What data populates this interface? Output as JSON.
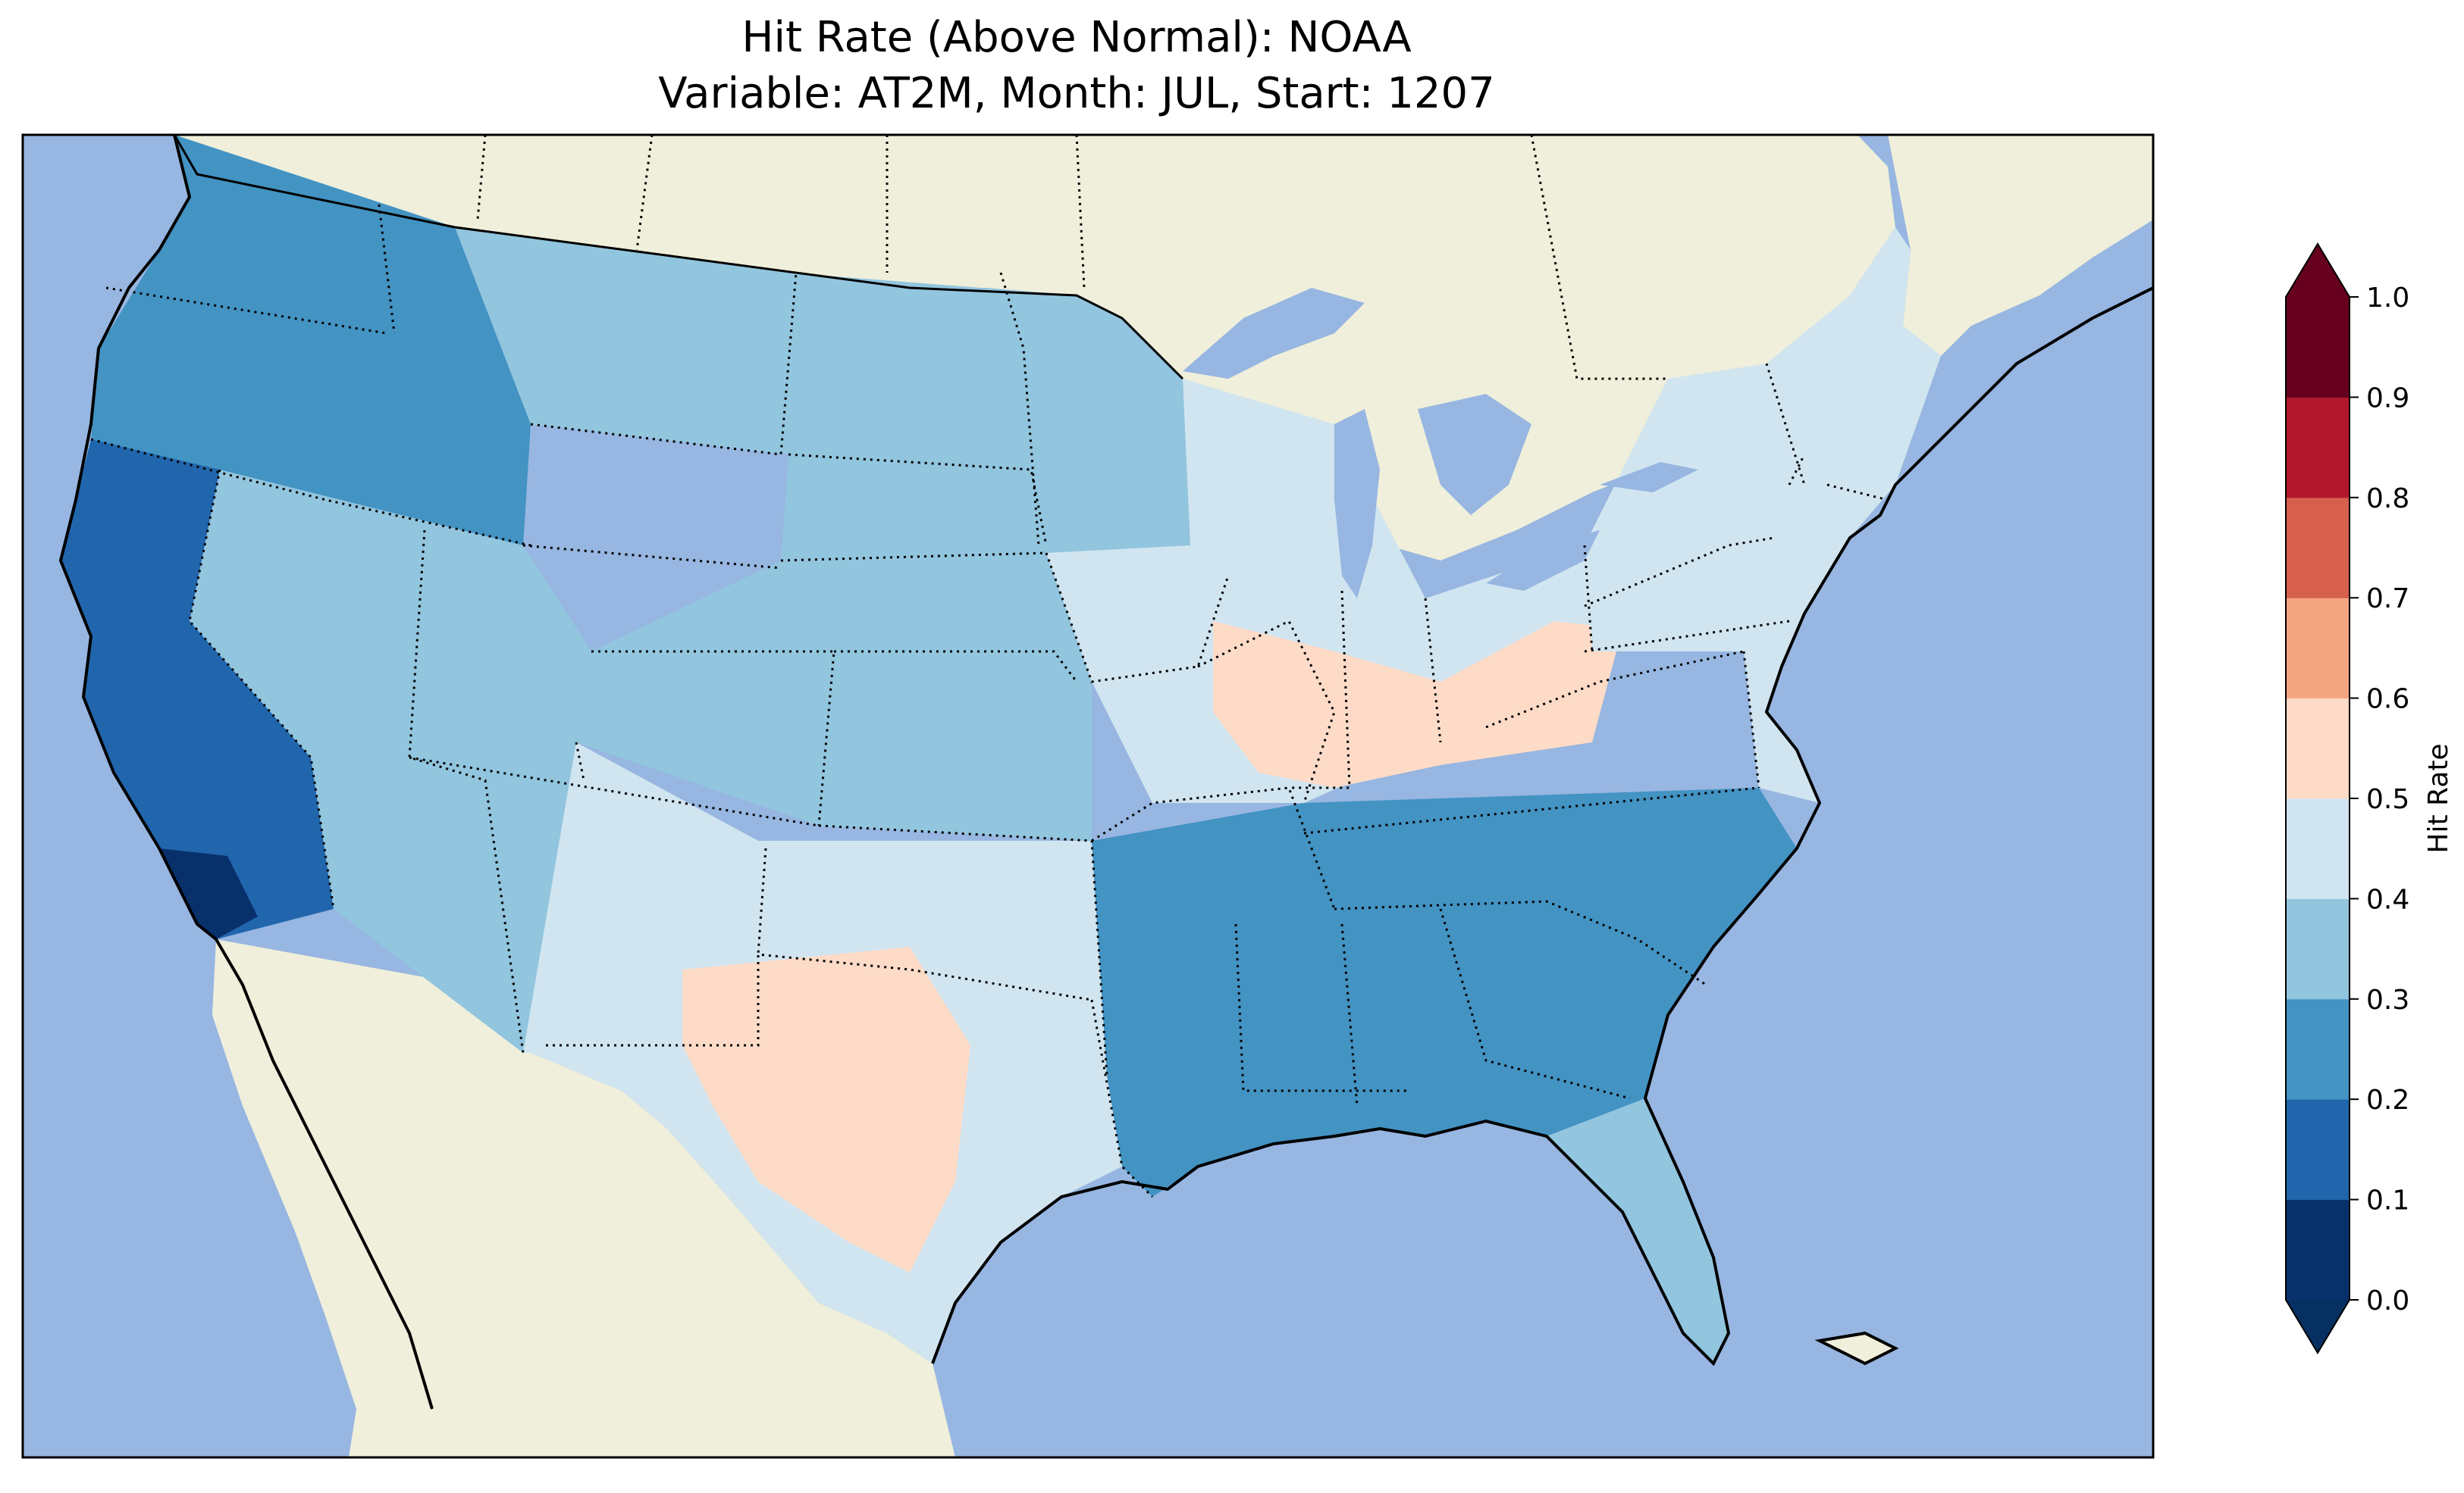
{
  "title_line1": "Hit Rate (Above Normal): NOAA",
  "title_line2": "Variable: AT2M, Month: JUL, Start: 1207",
  "colorbar": {
    "label": "Hit Rate",
    "ticks": [
      "0.0",
      "0.1",
      "0.2",
      "0.3",
      "0.4",
      "0.5",
      "0.6",
      "0.7",
      "0.8",
      "0.9",
      "1.0"
    ],
    "colors": [
      "#08306b",
      "#2166ac",
      "#4393c3",
      "#92c5de",
      "#d1e5f0",
      "#fddbc7",
      "#f4a582",
      "#d6604d",
      "#b2182b",
      "#67001f"
    ],
    "under_color": "#053061",
    "over_color": "#67001f"
  },
  "map_colors": {
    "ocean": "#97b6e1",
    "land": "#efefdb",
    "lakes": "#97b6e1",
    "coast": "#000000"
  },
  "regions": [
    {
      "name": "northwest",
      "value": 0.25
    },
    {
      "name": "california",
      "value": 0.15
    },
    {
      "name": "southern-california",
      "value": 0.05
    },
    {
      "name": "great-basin",
      "value": 0.3
    },
    {
      "name": "northern-rockies",
      "value": 0.35
    },
    {
      "name": "northern-plains",
      "value": 0.35
    },
    {
      "name": "central-plains",
      "value": 0.35
    },
    {
      "name": "southern-plains",
      "value": 0.45
    },
    {
      "name": "west-texas",
      "value": 0.55
    },
    {
      "name": "midwest",
      "value": 0.45
    },
    {
      "name": "ohio-valley",
      "value": 0.55
    },
    {
      "name": "southeast",
      "value": 0.25
    },
    {
      "name": "florida",
      "value": 0.35
    },
    {
      "name": "northeast",
      "value": 0.45
    }
  ]
}
